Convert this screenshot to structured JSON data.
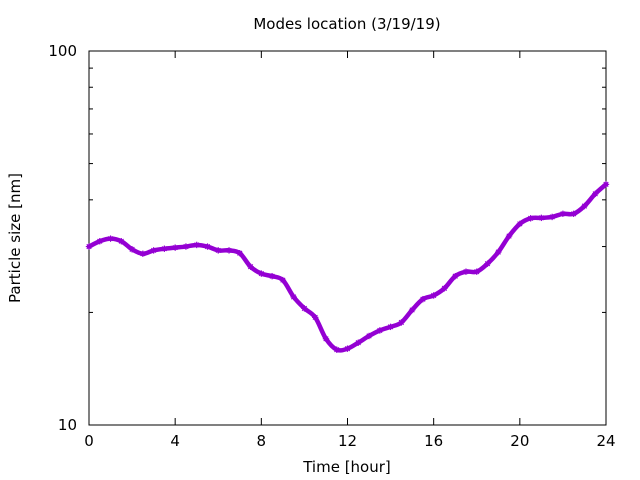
{
  "chart_data": {
    "type": "line",
    "title": "Modes location (3/19/19)",
    "xlabel": "Time [hour]",
    "ylabel": "Particle size [nm]",
    "xlim": [
      0,
      24
    ],
    "ylim": [
      10,
      100
    ],
    "yscale": "log",
    "x_ticks": [
      "0",
      "4",
      "8",
      "12",
      "16",
      "20",
      "24"
    ],
    "y_ticks": [
      "10",
      "100"
    ],
    "grid": false,
    "legend": "none",
    "series_color": "#9400d3",
    "series": [
      {
        "x": [
          0,
          0.5,
          1.0,
          1.5,
          2.0,
          2.5,
          3.0,
          3.5,
          4.0,
          4.5,
          5.0,
          5.5,
          6.0,
          6.5,
          7.0,
          7.5,
          8.0,
          8.5,
          9.0,
          9.5,
          10.0,
          10.5,
          11.0,
          11.5,
          12.0,
          12.5,
          13.0,
          13.5,
          14.0,
          14.5,
          15.0,
          15.5,
          16.0,
          16.5,
          17.0,
          17.5,
          18.0,
          18.5,
          19.0,
          19.5,
          20.0,
          20.5,
          21.0,
          21.5,
          22.0,
          22.5,
          23.0,
          23.5,
          24.0
        ],
        "values": [
          30.0,
          31.0,
          31.5,
          31.0,
          29.5,
          28.7,
          29.3,
          29.6,
          29.8,
          30.0,
          30.3,
          30.0,
          29.3,
          29.3,
          28.8,
          26.5,
          25.4,
          25.0,
          24.4,
          22.0,
          20.5,
          19.4,
          17.0,
          15.9,
          16.0,
          16.6,
          17.3,
          17.9,
          18.3,
          18.8,
          20.3,
          21.7,
          22.2,
          23.2,
          25.0,
          25.7,
          25.7,
          27.0,
          29.0,
          32.0,
          34.5,
          35.7,
          35.8,
          36.0,
          36.7,
          36.7,
          38.5,
          41.5,
          44.0
        ]
      }
    ]
  }
}
